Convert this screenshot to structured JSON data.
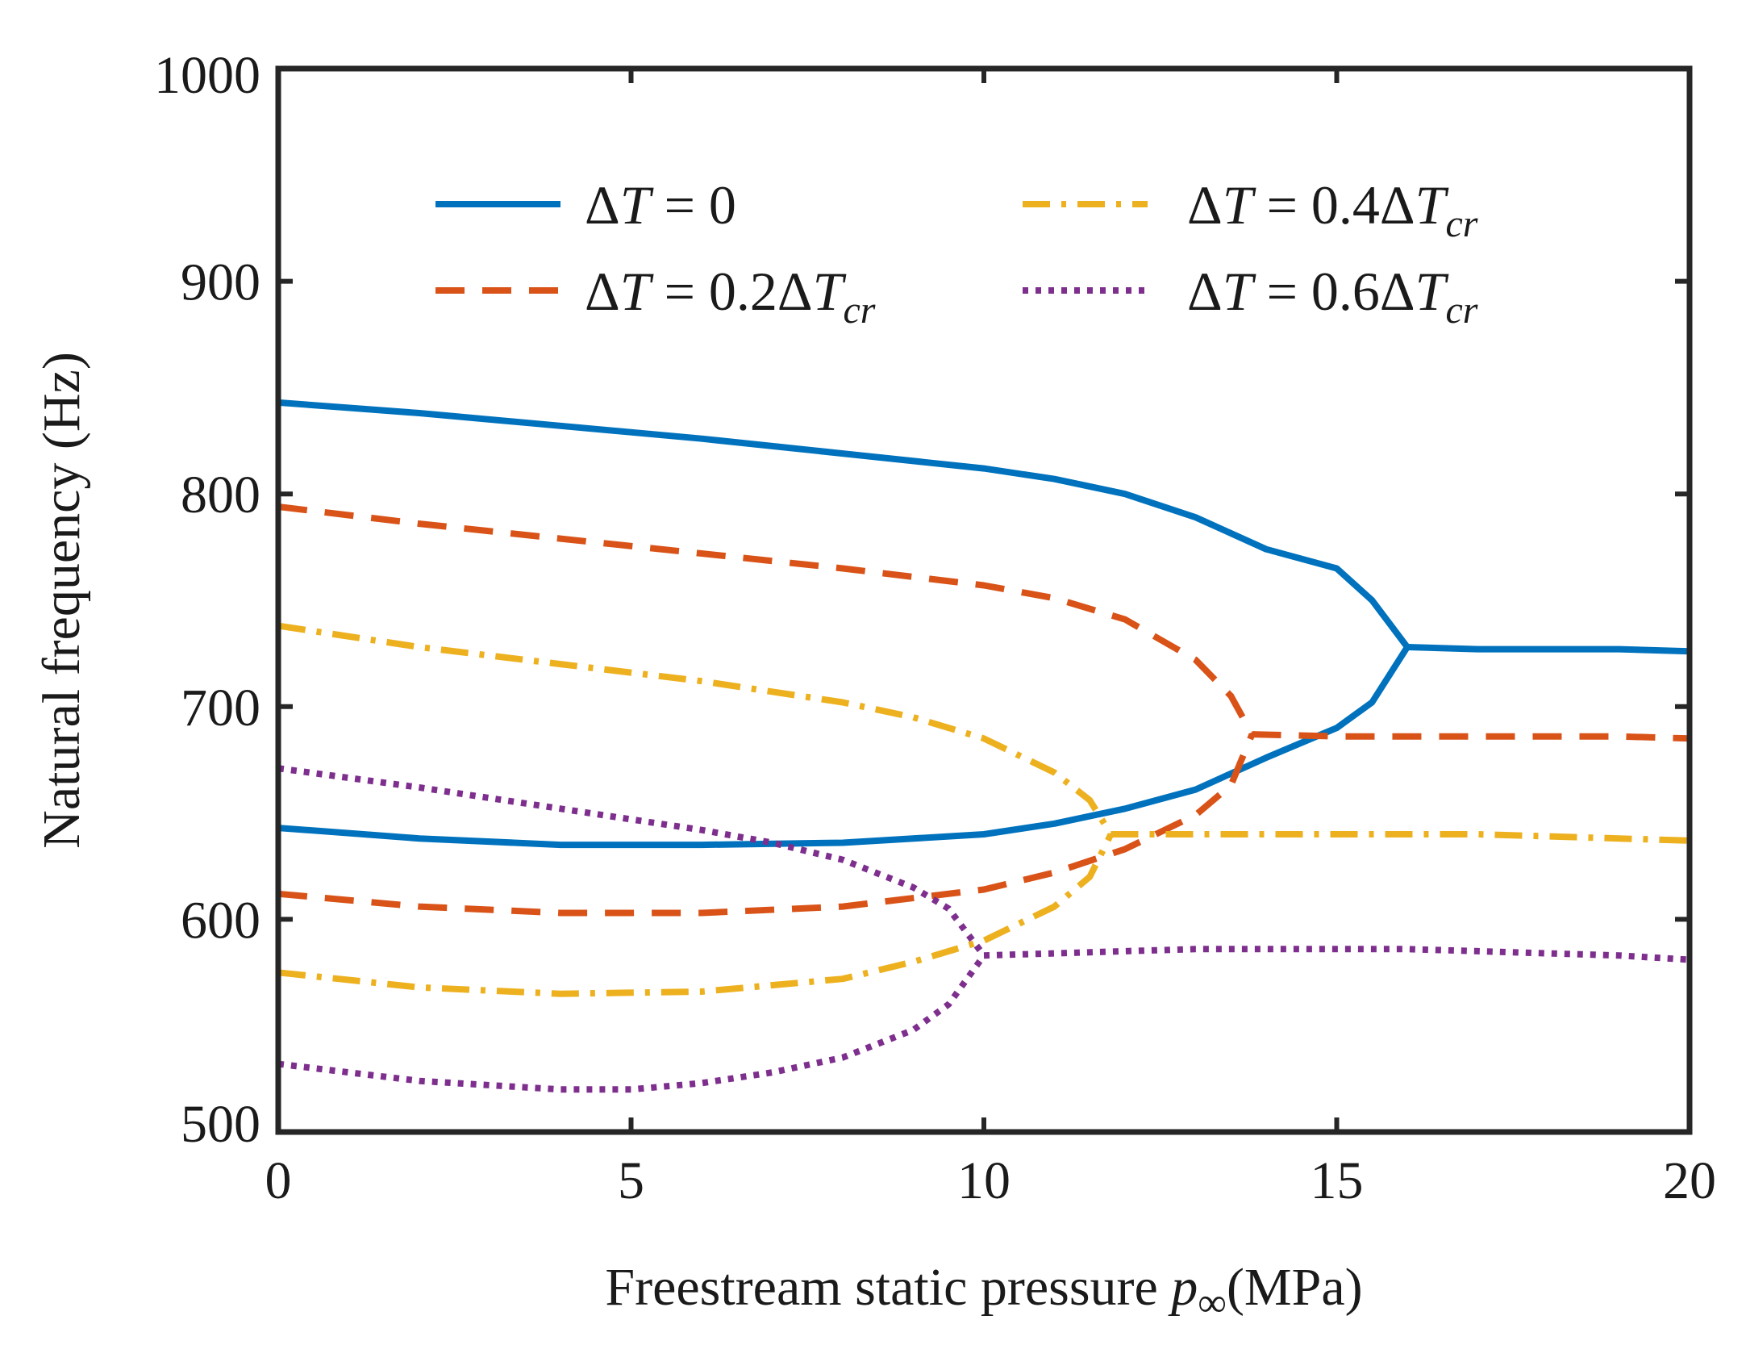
{
  "chart_data": {
    "type": "line",
    "title": "",
    "xlabel_text": "Freestream static pressure ",
    "xlabel_symbol": "p",
    "xlabel_subscript": "∞",
    "xlabel_unit": "(MPa)",
    "ylabel": "Natural frequency (Hz)",
    "xlim": [
      0,
      20
    ],
    "ylim": [
      500,
      1000
    ],
    "xticks": [
      0,
      5,
      10,
      15,
      20
    ],
    "yticks": [
      500,
      600,
      700,
      800,
      900,
      1000
    ],
    "grid": false,
    "legend_position": "top",
    "series": [
      {
        "name": "ΔT = 0",
        "legend": {
          "pre": "Δ",
          "var": "T",
          "eq": " = 0",
          "coef": "",
          "var2": "",
          "sub": ""
        },
        "color": "#0072BD",
        "dash": "solid",
        "branches": [
          [
            [
              0,
              843
            ],
            [
              2,
              838
            ],
            [
              4,
              832
            ],
            [
              6,
              826
            ],
            [
              8,
              819
            ],
            [
              10,
              812
            ],
            [
              11,
              807
            ],
            [
              12,
              800
            ],
            [
              13,
              789
            ],
            [
              14,
              774
            ],
            [
              15,
              765
            ],
            [
              15.5,
              750
            ],
            [
              16,
              728
            ]
          ],
          [
            [
              0,
              643
            ],
            [
              2,
              638
            ],
            [
              4,
              635
            ],
            [
              6,
              635
            ],
            [
              8,
              636
            ],
            [
              10,
              640
            ],
            [
              11,
              645
            ],
            [
              12,
              652
            ],
            [
              13,
              661
            ],
            [
              14,
              676
            ],
            [
              15,
              690
            ],
            [
              15.5,
              702
            ],
            [
              16,
              728
            ]
          ],
          [
            [
              16,
              728
            ],
            [
              17,
              727
            ],
            [
              18,
              727
            ],
            [
              19,
              727
            ],
            [
              20,
              726
            ]
          ]
        ]
      },
      {
        "name": "ΔT = 0.2ΔTcr",
        "legend": {
          "pre": "Δ",
          "var": "T",
          "eq": " = 0.2",
          "coef": "Δ",
          "var2": "T",
          "sub": "cr"
        },
        "color": "#D95319",
        "dash": "dashed",
        "branches": [
          [
            [
              0,
              794
            ],
            [
              2,
              786
            ],
            [
              4,
              779
            ],
            [
              6,
              772
            ],
            [
              8,
              765
            ],
            [
              10,
              757
            ],
            [
              11,
              751
            ],
            [
              12,
              741
            ],
            [
              13,
              722
            ],
            [
              13.5,
              705
            ],
            [
              13.8,
              687
            ]
          ],
          [
            [
              0,
              612
            ],
            [
              2,
              606
            ],
            [
              4,
              603
            ],
            [
              6,
              603
            ],
            [
              8,
              606
            ],
            [
              10,
              614
            ],
            [
              11,
              622
            ],
            [
              12,
              633
            ],
            [
              13,
              649
            ],
            [
              13.5,
              663
            ],
            [
              13.8,
              687
            ]
          ],
          [
            [
              13.8,
              687
            ],
            [
              15,
              686
            ],
            [
              16,
              686
            ],
            [
              17,
              686
            ],
            [
              18,
              686
            ],
            [
              19,
              686
            ],
            [
              20,
              685
            ]
          ]
        ]
      },
      {
        "name": "ΔT = 0.4ΔTcr",
        "legend": {
          "pre": "Δ",
          "var": "T",
          "eq": " = 0.4",
          "coef": "Δ",
          "var2": "T",
          "sub": "cr"
        },
        "color": "#EDB120",
        "dash": "dashdot",
        "branches": [
          [
            [
              0,
              738
            ],
            [
              2,
              728
            ],
            [
              4,
              720
            ],
            [
              6,
              712
            ],
            [
              8,
              702
            ],
            [
              9,
              695
            ],
            [
              10,
              685
            ],
            [
              11,
              669
            ],
            [
              11.5,
              656
            ],
            [
              11.8,
              640
            ]
          ],
          [
            [
              0,
              575
            ],
            [
              2,
              568
            ],
            [
              4,
              565
            ],
            [
              6,
              566
            ],
            [
              8,
              572
            ],
            [
              9,
              580
            ],
            [
              10,
              590
            ],
            [
              11,
              606
            ],
            [
              11.5,
              620
            ],
            [
              11.8,
              640
            ]
          ],
          [
            [
              11.8,
              640
            ],
            [
              13,
              640
            ],
            [
              14,
              640
            ],
            [
              15,
              640
            ],
            [
              16,
              640
            ],
            [
              17,
              640
            ],
            [
              18,
              639
            ],
            [
              19,
              638
            ],
            [
              20,
              637
            ]
          ]
        ]
      },
      {
        "name": "ΔT = 0.6ΔTcr",
        "legend": {
          "pre": "Δ",
          "var": "T",
          "eq": " = 0.6",
          "coef": "Δ",
          "var2": "T",
          "sub": "cr"
        },
        "color": "#7E2F8E",
        "dash": "dotted",
        "branches": [
          [
            [
              0,
              671
            ],
            [
              2,
              662
            ],
            [
              4,
              652
            ],
            [
              6,
              642
            ],
            [
              7,
              636
            ],
            [
              8,
              628
            ],
            [
              9,
              615
            ],
            [
              9.5,
              605
            ],
            [
              10,
              583
            ]
          ],
          [
            [
              0,
              532
            ],
            [
              2,
              524
            ],
            [
              4,
              520
            ],
            [
              5,
              520
            ],
            [
              6,
              523
            ],
            [
              7,
              528
            ],
            [
              8,
              535
            ],
            [
              9,
              548
            ],
            [
              9.5,
              560
            ],
            [
              10,
              583
            ]
          ],
          [
            [
              10,
              583
            ],
            [
              11,
              584
            ],
            [
              12,
              585
            ],
            [
              13,
              586
            ],
            [
              14,
              586
            ],
            [
              15,
              586
            ],
            [
              16,
              586
            ],
            [
              17,
              585
            ],
            [
              18,
              584
            ],
            [
              19,
              583
            ],
            [
              20,
              581
            ]
          ]
        ]
      }
    ]
  }
}
